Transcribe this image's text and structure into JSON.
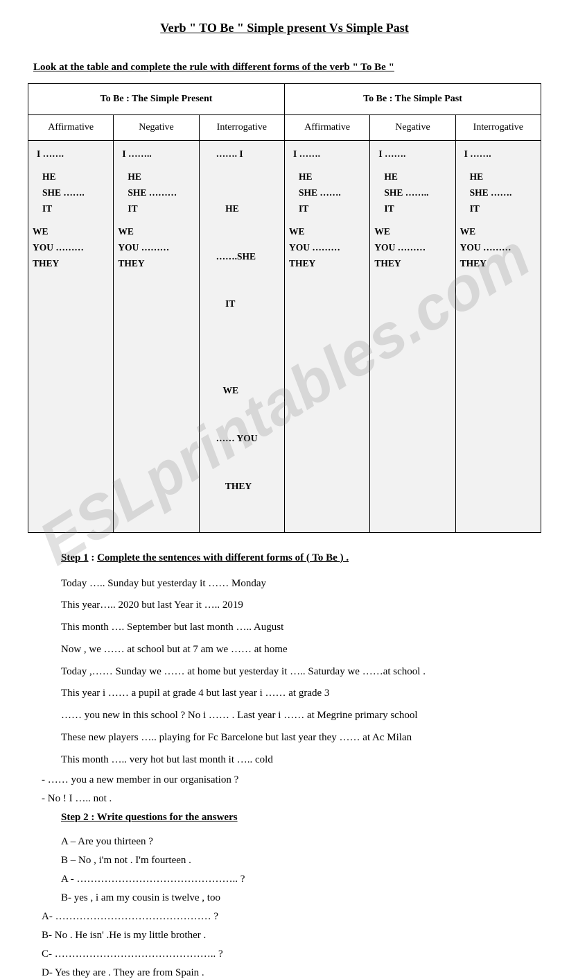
{
  "title": "Verb \" TO Be \" Simple present Vs Simple Past",
  "instruction": "Look at the table and complete the rule with different forms of the verb \" To Be \"",
  "watermark": "ESLprintables.com",
  "table": {
    "headers": [
      "To Be : The Simple Present",
      "To Be : The Simple Past"
    ],
    "subheaders": [
      "Affirmative",
      "Negative",
      "Interrogative",
      "Affirmative",
      "Negative",
      "Interrogative"
    ],
    "cells": [
      {
        "i": "I  …….",
        "group2": [
          "HE",
          "SHE  …….",
          "IT"
        ],
        "group3": [
          "WE",
          "YOU ………",
          "THEY"
        ]
      },
      {
        "i": "I   ……..",
        "group2": [
          "HE",
          "SHE  ………",
          "IT"
        ],
        "group3": [
          "WE",
          "YOU  ………",
          " THEY"
        ]
      },
      {
        "i": "……. I",
        "group2": [
          "    HE",
          "…….SHE",
          "    IT"
        ],
        "group3": [
          "   WE",
          "…… YOU",
          "    THEY"
        ]
      },
      {
        "i": "I  …….",
        "group2": [
          "HE",
          "SHE  …….",
          "IT"
        ],
        "group3": [
          "WE",
          "YOU ………",
          "THEY"
        ]
      },
      {
        "i": "I  …….",
        "group2": [
          "HE",
          "SHE ……..",
          "IT"
        ],
        "group3": [
          "WE",
          "YOU ………",
          "THEY"
        ]
      },
      {
        "i": "I …….",
        "group2": [
          "HE",
          "SHE  …….",
          "IT"
        ],
        "group3": [
          "WE",
          "YOU ………",
          "THEY"
        ]
      }
    ]
  },
  "step1": {
    "label_bold": "Step 1",
    "label_rest": "Complete the sentences with different forms of ( To Be ) .",
    "sentences": [
      "Today ….. Sunday but yesterday it …… Monday",
      "This year….. 2020 but last Year it ….. 2019",
      "This month …. September but last month …..  August",
      "Now , we …… at school but at 7 am we …… at home",
      "Today ,…… Sunday we …… at home but yesterday it ….. Saturday we ……at school .",
      "This year i …… a pupil at grade 4 but last year i ……  at grade 3",
      "…… you new in this school ? No i …… . Last year i …… at Megrine primary school",
      "These new players ….. playing for Fc Barcelone but last year they …… at Ac Milan",
      " This month ….. very hot but last month it …..  cold"
    ],
    "dash_lines": [
      "-    …… you a new member in our organisation ?",
      "-    No ! I …..  not ."
    ]
  },
  "step2": {
    "title": "Step 2 : Write questions for the answers",
    "lines_in": [
      "A – Are you thirteen ?",
      "B – No , i'm not . I'm fourteen .",
      "A - ……………………………………….. ?",
      "B- yes , i am my cousin is twelve , too"
    ],
    "lines_out": [
      "A-  ……………………………………… ?",
      "B-  No . He isn' .He is my little brother .",
      "C-  ……………………………………….. ?",
      "D-  Yes they are . They are  from Spain ."
    ]
  }
}
